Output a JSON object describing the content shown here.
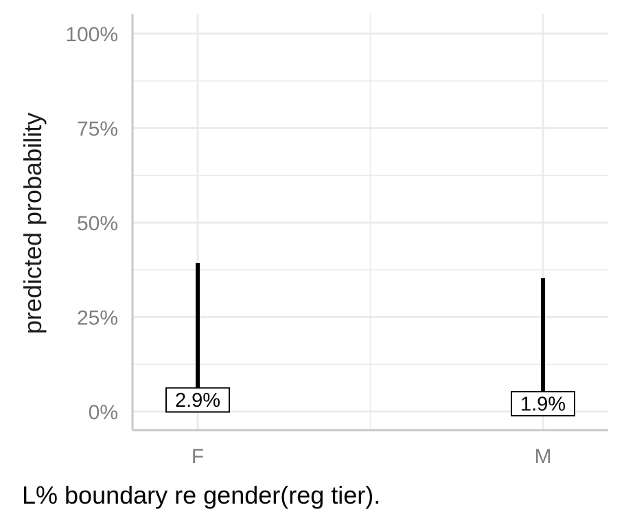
{
  "chart_data": {
    "type": "errorbar",
    "categories": [
      "F",
      "M"
    ],
    "values": [
      0.029,
      0.019
    ],
    "value_labels": [
      "2.9%",
      "1.9%"
    ],
    "ci_low": [
      0.0,
      0.0
    ],
    "ci_high": [
      0.393,
      0.353
    ],
    "ylabel": "predicted probability",
    "xlabel": "",
    "ylim": [
      -0.05,
      1.04
    ],
    "yticks": [
      0,
      0.25,
      0.5,
      0.75,
      1.0
    ],
    "ytick_labels": [
      "0%",
      "25%",
      "50%",
      "75%",
      "100%"
    ],
    "grid": true
  },
  "caption": "L% boundary re gender(reg tier).",
  "colors": {
    "grid": "#ebebeb",
    "axis": "#c8c8c8",
    "tick_text": "#7f7f7f",
    "bar": "#000000",
    "label_box_fill": "#ffffff",
    "label_box_border": "#000000"
  }
}
